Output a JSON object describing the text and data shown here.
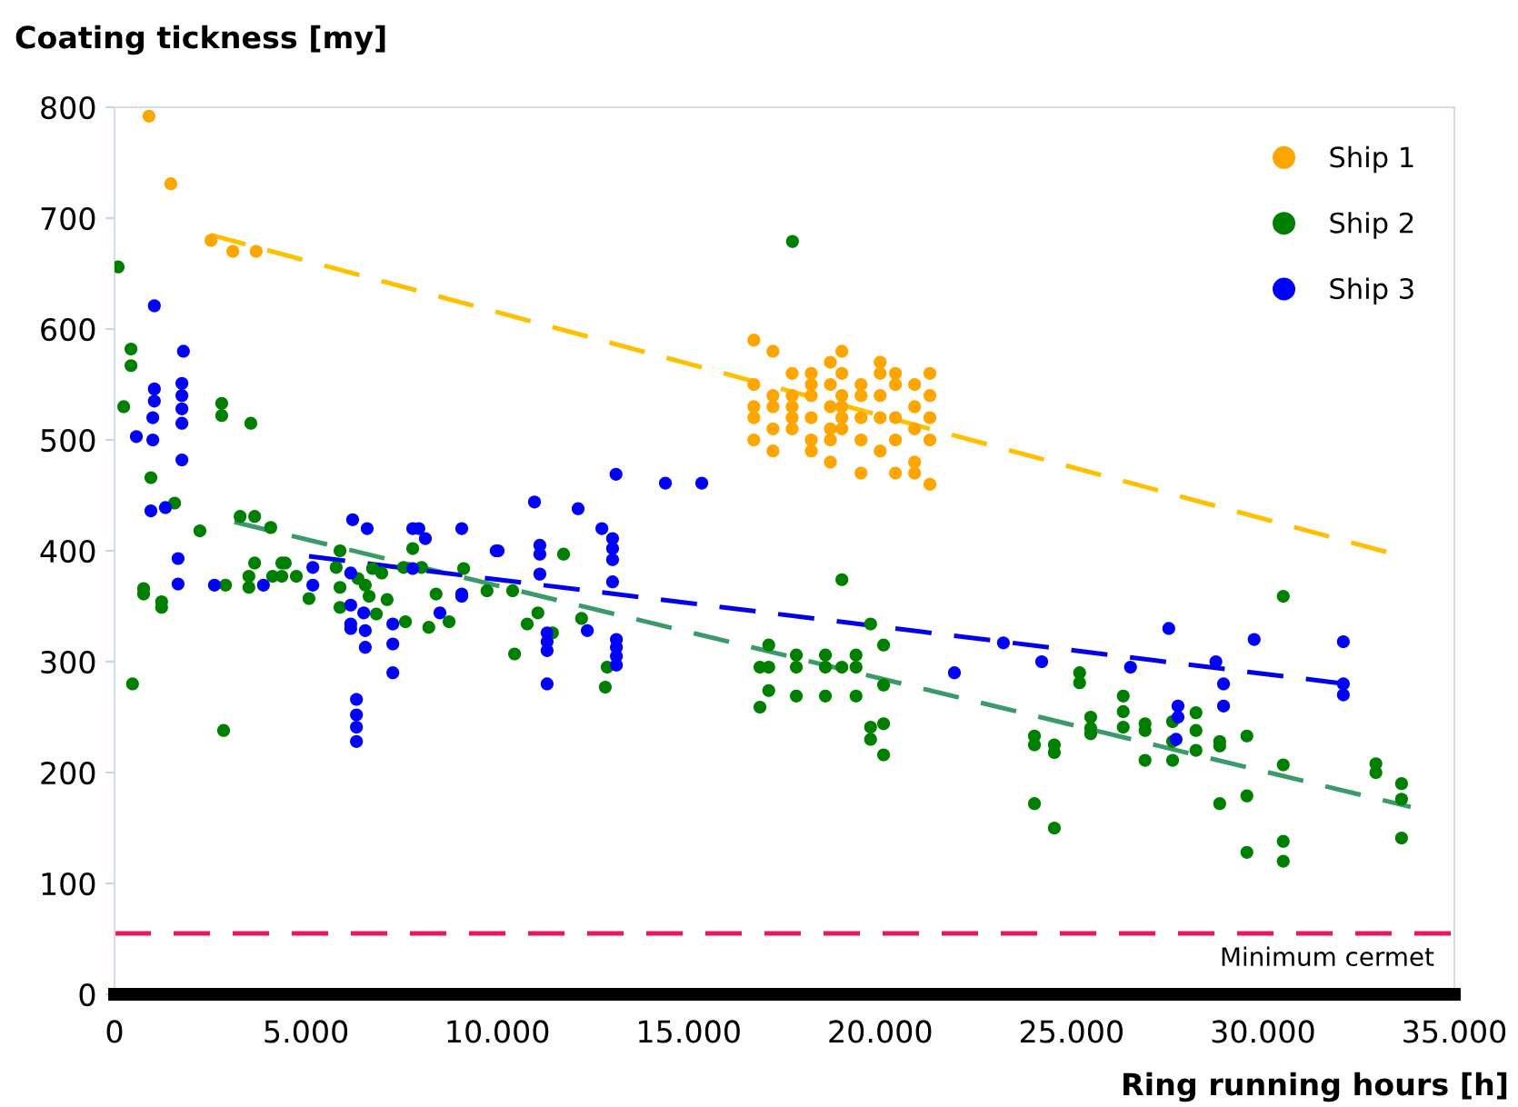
{
  "chart_data": {
    "type": "scatter",
    "ylabel": "Coating tickness [my]",
    "xlabel": "Ring running hours [h]",
    "xlim": [
      0,
      35000
    ],
    "ylim": [
      0,
      800
    ],
    "xticks": [
      0,
      {
        "value": 5000,
        "label": "5.000"
      },
      {
        "value": 10000,
        "label": "10.000"
      },
      {
        "value": 15000,
        "label": "15.000"
      },
      {
        "value": 20000,
        "label": "20.000"
      },
      {
        "value": 25000,
        "label": "25.000"
      },
      {
        "value": 30000,
        "label": "30.000"
      },
      {
        "value": 35000,
        "label": "35.000"
      }
    ],
    "yticks": [
      0,
      100,
      200,
      300,
      400,
      500,
      600,
      700,
      800
    ],
    "grid": false,
    "legend": "top right",
    "marker": "circle",
    "ref_lines": [
      {
        "axis": "y",
        "value": 55,
        "label": "Minimum cermet",
        "color": "#e8185a",
        "line_style": "dashed"
      }
    ],
    "series": [
      {
        "name": "Ship 1",
        "color": "#ffa500",
        "x": [
          900,
          1470,
          2520,
          3090,
          3700,
          16700,
          16700,
          16700,
          16700,
          16700,
          17200,
          17200,
          17200,
          17200,
          17200,
          17700,
          17700,
          17700,
          17700,
          17700,
          18200,
          18200,
          18200,
          18200,
          18200,
          18200,
          18700,
          18700,
          18700,
          18700,
          18700,
          18700,
          19000,
          19000,
          19000,
          19000,
          19000,
          19000,
          19500,
          19500,
          19500,
          19500,
          19500,
          20000,
          20000,
          20000,
          20000,
          20000,
          20400,
          20400,
          20400,
          20400,
          20400,
          20900,
          20900,
          20900,
          20900,
          20900,
          21300,
          21300,
          21300,
          21300,
          21300
        ],
        "values": [
          792,
          731,
          680,
          670,
          670,
          590,
          550,
          530,
          520,
          500,
          580,
          540,
          530,
          510,
          490,
          560,
          540,
          530,
          520,
          510,
          560,
          550,
          540,
          520,
          500,
          490,
          570,
          550,
          530,
          510,
          500,
          480,
          580,
          560,
          540,
          530,
          520,
          510,
          550,
          540,
          520,
          500,
          470,
          570,
          560,
          540,
          520,
          490,
          560,
          550,
          520,
          500,
          470,
          550,
          530,
          510,
          480,
          470,
          560,
          540,
          520,
          500,
          460
        ]
      },
      {
        "name": "Ship 2",
        "color": "#008000",
        "x": [
          95,
          430,
          430,
          240,
          950,
          1570,
          2230,
          2800,
          2800,
          3560,
          760,
          760,
          1230,
          1230,
          470,
          2850,
          2900,
          3280,
          3660,
          4080,
          3510,
          3510,
          3660,
          4130,
          4460,
          4750,
          4370,
          4370,
          5080,
          5790,
          5890,
          5890,
          5890,
          6360,
          6550,
          6650,
          6740,
          6840,
          6980,
          7120,
          7550,
          7600,
          7790,
          8020,
          8210,
          8400,
          8740,
          9120,
          9730,
          10400,
          11730,
          11060,
          10780,
          12200,
          11440,
          10450,
          12870,
          12820,
          17710,
          16860,
          16860,
          17090,
          17090,
          17090,
          17810,
          17810,
          17810,
          18570,
          18570,
          18570,
          19000,
          19000,
          19370,
          19370,
          19370,
          19750,
          19750,
          19750,
          20090,
          20090,
          20090,
          20090,
          25210,
          25210,
          24030,
          24030,
          24550,
          24550,
          24030,
          24550,
          25500,
          25500,
          25500,
          26350,
          26350,
          26350,
          26920,
          26920,
          26920,
          27640,
          27640,
          27640,
          28250,
          28250,
          28250,
          28870,
          28870,
          28870,
          29580,
          29580,
          29580,
          30530,
          30530,
          30530,
          30530,
          32950,
          32950,
          33620,
          33620,
          33620
        ],
        "values": [
          656,
          582,
          567,
          530,
          466,
          443,
          418,
          533,
          522,
          515,
          366,
          361,
          354,
          349,
          280,
          238,
          369,
          431,
          431,
          421,
          377,
          367,
          389,
          377,
          389,
          377,
          389,
          377,
          357,
          385,
          400,
          367,
          349,
          375,
          369,
          359,
          384,
          343,
          380,
          356,
          385,
          336,
          402,
          385,
          331,
          361,
          336,
          384,
          364,
          364,
          397,
          344,
          334,
          339,
          326,
          307,
          295,
          277,
          679,
          295,
          259,
          315,
          295,
          274,
          306,
          295,
          269,
          306,
          295,
          269,
          374,
          295,
          306,
          295,
          269,
          334,
          241,
          230,
          315,
          279,
          244,
          216,
          290,
          281,
          233,
          225,
          225,
          218,
          172,
          150,
          250,
          240,
          235,
          269,
          255,
          241,
          244,
          238,
          211,
          246,
          228,
          211,
          254,
          238,
          220,
          228,
          224,
          172,
          233,
          179,
          128,
          359,
          207,
          138,
          120,
          208,
          200,
          190,
          176,
          141
        ]
      },
      {
        "name": "Ship 3",
        "color": "#0000ff",
        "x": [
          1040,
          1800,
          1040,
          1040,
          1000,
          1760,
          1760,
          1760,
          1760,
          570,
          1000,
          1760,
          950,
          1330,
          1660,
          1660,
          2610,
          3890,
          5180,
          5180,
          6170,
          6170,
          6170,
          6170,
          6550,
          6550,
          6510,
          7270,
          7270,
          7270,
          8500,
          7790,
          9070,
          6220,
          6600,
          7790,
          7950,
          8120,
          9070,
          9970,
          6320,
          6320,
          6320,
          6320,
          13100,
          14390,
          15340,
          10970,
          12110,
          12730,
          13010,
          13010,
          13010,
          10020,
          11110,
          11110,
          11110,
          13010,
          9070,
          11300,
          11300,
          11300,
          12350,
          13110,
          13110,
          13110,
          13110,
          11300,
          21940,
          23220,
          24220,
          26540,
          27540,
          27780,
          27780,
          27730,
          28770,
          28970,
          28970,
          29770,
          32100,
          32100,
          32100
        ],
        "values": [
          621,
          580,
          546,
          535,
          520,
          551,
          540,
          528,
          515,
          503,
          500,
          482,
          436,
          439,
          393,
          370,
          369,
          369,
          385,
          369,
          380,
          351,
          334,
          330,
          328,
          313,
          344,
          334,
          316,
          290,
          344,
          384,
          361,
          428,
          420,
          420,
          420,
          411,
          420,
          400,
          266,
          252,
          241,
          228,
          469,
          461,
          461,
          444,
          438,
          420,
          411,
          402,
          392,
          400,
          405,
          397,
          379,
          372,
          359,
          326,
          318,
          310,
          328,
          320,
          313,
          305,
          297,
          280,
          290,
          317,
          300,
          295,
          330,
          260,
          250,
          230,
          300,
          280,
          260,
          320,
          318,
          280,
          270
        ]
      },
      {
        "type": "line",
        "color": "#ffc000",
        "line_style": "dashed",
        "marker": "none",
        "x": [
          2500,
          33430
        ],
        "values": [
          685,
          397
        ]
      },
      {
        "type": "line",
        "color": "#3a9a6a",
        "line_style": "dashed",
        "marker": "none",
        "x": [
          3130,
          33860
        ],
        "values": [
          426,
          169
        ]
      },
      {
        "type": "line",
        "color": "#0000ee",
        "line_style": "dashed",
        "marker": "none",
        "x": [
          5080,
          32380
        ],
        "values": [
          395,
          279
        ]
      }
    ]
  }
}
